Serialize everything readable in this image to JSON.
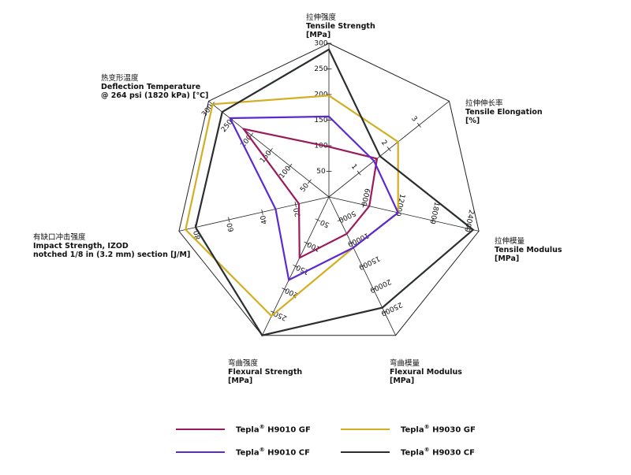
{
  "chart_data": {
    "type": "radar",
    "axes": [
      {
        "label_cn": "拉伸强度",
        "label_en": "Tensile Strength",
        "unit": "[MPa]",
        "max": 300,
        "ticks": [
          "50",
          "100",
          "150",
          "200",
          "250",
          "300"
        ]
      },
      {
        "label_cn": "拉伸伸长率",
        "label_en": "Tensile Elongation",
        "unit": "[%]",
        "max": 4,
        "ticks": [
          "1",
          "2",
          "3"
        ]
      },
      {
        "label_cn": "拉伸模量",
        "label_en": "Tensile Modulus",
        "unit": "[MPa]",
        "max": 26000,
        "ticks": [
          "6000",
          "12000",
          "18000",
          "24000"
        ]
      },
      {
        "label_cn": "弯曲模量",
        "label_en": "Flexural Modulus",
        "unit": "[MPa]",
        "max": 30000,
        "ticks": [
          "5000",
          "10000",
          "15000",
          "20000",
          "25000"
        ]
      },
      {
        "label_cn": "弯曲强度",
        "label_en": "Flexural Strength",
        "unit": "[MPa]",
        "max": 300,
        "ticks": [
          "50",
          "100",
          "150",
          "200",
          "250"
        ]
      },
      {
        "label_cn": "有缺口冲击强度",
        "label_en": "Impact Strength, IZOD",
        "unit": "notched 1/8 in (3.2 mm) section [J/M]",
        "max": 90,
        "ticks": [
          "20",
          "40",
          "60",
          "80"
        ]
      },
      {
        "label_cn": "热变形温度",
        "label_en": "Deflection Temperature",
        "unit": "@ 264 psi (1820 kPa) [℃]",
        "max": 310,
        "ticks": [
          "50",
          "100",
          "150",
          "200",
          "250",
          "300"
        ]
      }
    ],
    "series": [
      {
        "name": "H9010 GF",
        "color": "#9c1a5c",
        "values": [
          98,
          1.6,
          7000,
          8000,
          132,
          18,
          220
        ]
      },
      {
        "name": "H9030 GF",
        "color": "#d4ae22",
        "values": [
          198,
          2.3,
          12000,
          11000,
          258,
          86,
          300
        ]
      },
      {
        "name": "H9010 CF",
        "color": "#5b2ad1",
        "values": [
          157,
          1.5,
          12000,
          11000,
          180,
          32,
          255
        ]
      },
      {
        "name": "H9030 CF",
        "color": "#2a2e30",
        "values": [
          288,
          1.7,
          25000,
          24000,
          300,
          80,
          275
        ]
      }
    ],
    "legend": {
      "position": "bottom",
      "brand": "Tepla",
      "mark": "®",
      "order": [
        0,
        1,
        2,
        3
      ]
    }
  }
}
